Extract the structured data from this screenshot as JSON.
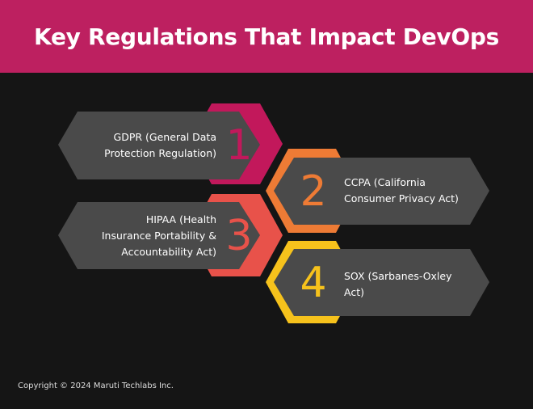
{
  "header": {
    "title": "Key Regulations That Impact DevOps"
  },
  "items": [
    {
      "number": "1",
      "label": "GDPR (General Data Protection Regulation)",
      "lines": [
        "GDPR (General Data",
        "Protection Regulation)"
      ],
      "color": "#c2185b"
    },
    {
      "number": "2",
      "label": "CCPA (California Consumer Privacy Act)",
      "lines": [
        "CCPA (California",
        "Consumer Privacy Act)"
      ],
      "color": "#ee7b35"
    },
    {
      "number": "3",
      "label": "HIPAA (Health Insurance Portability & Accountability Act)",
      "lines": [
        "HIPAA (Health",
        "Insurance Portability &",
        "Accountability Act)"
      ],
      "color": "#e8524a"
    },
    {
      "number": "4",
      "label": "SOX (Sarbanes-Oxley Act)",
      "lines": [
        "SOX (Sarbanes-Oxley",
        "Act)"
      ],
      "color": "#f6c21c"
    }
  ],
  "colors": {
    "header_bg": "#bd2060",
    "body_bg": "#151515",
    "card": "#4a4a4a"
  },
  "footer": {
    "copyright": "Copyright © 2024 Maruti Techlabs Inc."
  }
}
